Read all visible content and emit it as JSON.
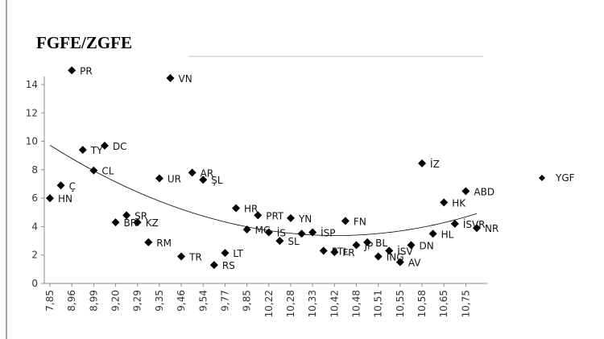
{
  "chart_data": {
    "type": "scatter",
    "title": "FGFE/ZGFE",
    "categories": [
      "7,85",
      null,
      "8,96",
      null,
      "8,99",
      null,
      "9,20",
      null,
      "9,29",
      null,
      "9,35",
      null,
      "9,46",
      null,
      "9,54",
      null,
      "9,77",
      null,
      "9,85",
      null,
      "10,22",
      null,
      "10,28",
      null,
      "10,33",
      null,
      "10,42",
      null,
      "10,48",
      null,
      "10,51",
      null,
      "10,55",
      null,
      "10,58",
      null,
      "10,65",
      null,
      "10,75",
      null
    ],
    "series": [
      {
        "name": "YGF",
        "color": "#000000",
        "values": [
          6.0,
          6.9,
          15.0,
          9.4,
          7.95,
          9.7,
          4.3,
          4.8,
          4.3,
          2.9,
          7.4,
          14.45,
          1.9,
          7.8,
          7.3,
          1.3,
          2.15,
          5.3,
          3.8,
          4.8,
          3.6,
          3.0,
          4.6,
          3.5,
          3.6,
          2.3,
          2.2,
          4.4,
          2.7,
          2.9,
          1.9,
          2.3,
          1.5,
          2.7,
          8.45,
          3.5,
          5.7,
          4.2,
          6.5,
          3.9
        ],
        "point_labels": [
          "HN",
          "Ç",
          "PR",
          "TY",
          "CL",
          "DC",
          "BR",
          "SR",
          "KZ",
          "RM",
          "UR",
          "VN",
          "TR",
          "AR",
          "ŞL",
          "RS",
          "LT",
          "HR",
          "MC",
          "PRT",
          "İS",
          "SL",
          "YN",
          null,
          "İSP",
          "PTL",
          "FR",
          "FN",
          "JP",
          "BL",
          "İNG",
          "İSV",
          "AV",
          "DN",
          "İZ",
          "HL",
          "HK",
          "İSVR",
          "ABD",
          "NR"
        ]
      }
    ],
    "ylim": [
      0,
      14
    ],
    "yticks": [
      0,
      2,
      4,
      6,
      8,
      10,
      12,
      14
    ],
    "trendline": "polynomial-2",
    "legend": "right"
  }
}
